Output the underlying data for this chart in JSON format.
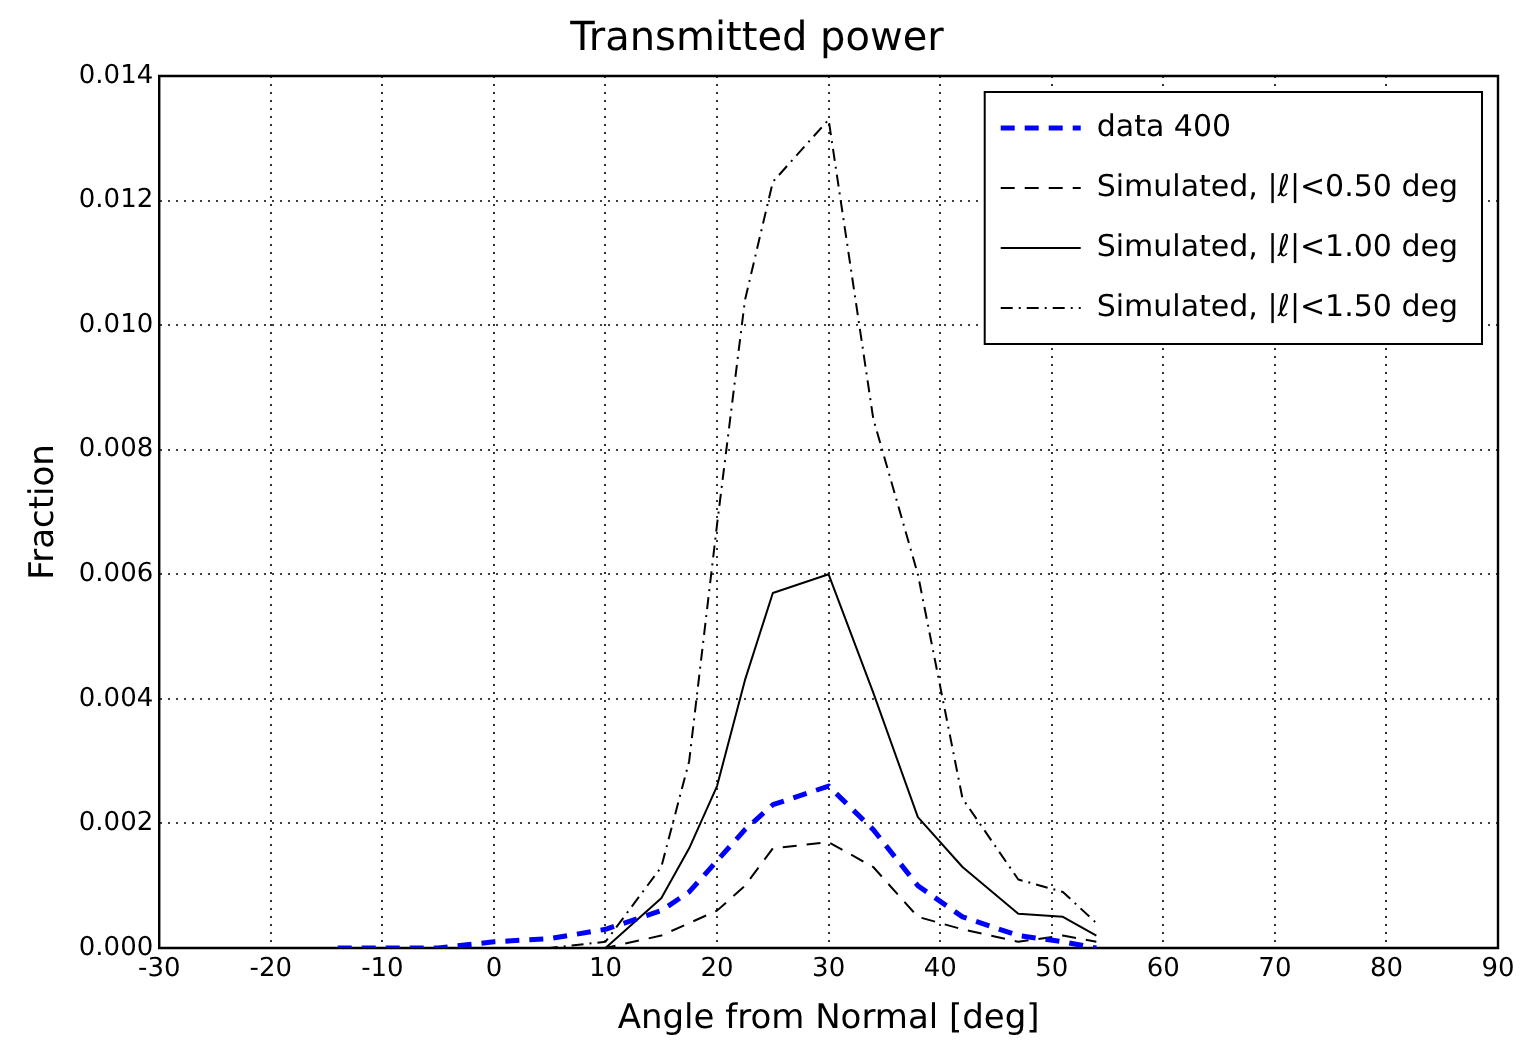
{
  "chart_data": {
    "type": "line",
    "title": "Transmitted power",
    "xlabel": "Angle from Normal [deg]",
    "ylabel": "Fraction",
    "x": [
      -14,
      -10,
      -5,
      0,
      5,
      10,
      15,
      17.5,
      20,
      22.5,
      25,
      30,
      34,
      38,
      42,
      47,
      51,
      54
    ],
    "xlim": [
      -30,
      90
    ],
    "xticks": [
      -30,
      -20,
      -10,
      0,
      10,
      20,
      30,
      40,
      50,
      60,
      70,
      80,
      90
    ],
    "ylim": [
      0,
      0.014
    ],
    "yticks": [
      {
        "value": 0,
        "label": "0.000"
      },
      {
        "value": 0.002,
        "label": "0.002"
      },
      {
        "value": 0.004,
        "label": "0.004"
      },
      {
        "value": 0.006,
        "label": "0.006"
      },
      {
        "value": 0.008,
        "label": "0.008"
      },
      {
        "value": 0.01,
        "label": "0.010"
      },
      {
        "value": 0.012,
        "label": "0.012"
      },
      {
        "value": 0.014,
        "label": "0.014"
      }
    ],
    "grid": true,
    "legend": "top right",
    "marker": "none",
    "series": [
      {
        "name": "data 400",
        "color": "#0000ff",
        "line_style": "dashed",
        "values": [
          0,
          0,
          0,
          0.0001,
          0.00015,
          0.0003,
          0.0006,
          0.0009,
          0.0014,
          0.0019,
          0.0023,
          0.0026,
          0.0019,
          0.001,
          0.0005,
          0.0002,
          0.0001,
          0
        ]
      },
      {
        "name": "Simulated, |ℓ|<0.50 deg",
        "color": "#000000",
        "line_style": "dashed",
        "values": [
          0,
          0,
          0,
          0,
          0,
          0,
          0.0002,
          0.0004,
          0.0006,
          0.001,
          0.0016,
          0.0017,
          0.0013,
          0.0005,
          0.0003,
          0.0001,
          0.0002,
          0.0001
        ]
      },
      {
        "name": "Simulated, |ℓ|<1.00 deg",
        "color": "#000000",
        "line_style": "solid",
        "values": [
          0,
          0,
          0,
          0,
          0,
          0,
          0.0008,
          0.0016,
          0.0026,
          0.0043,
          0.0057,
          0.006,
          0.0041,
          0.0021,
          0.0013,
          0.00055,
          0.0005,
          0.0002
        ]
      },
      {
        "name": "Simulated, |ℓ|<1.50 deg",
        "color": "#000000",
        "line_style": "dotted",
        "values": [
          0,
          0,
          0,
          0,
          0,
          0.0001,
          0.0013,
          0.003,
          0.0068,
          0.0104,
          0.0123,
          0.0133,
          0.0085,
          0.006,
          0.0024,
          0.0011,
          0.0009,
          0.0004
        ]
      }
    ]
  }
}
